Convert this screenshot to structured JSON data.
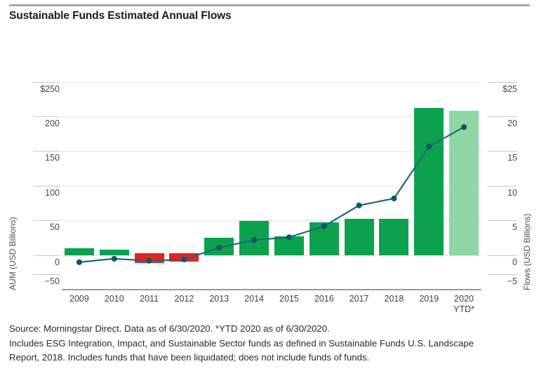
{
  "title": "Sustainable Funds Estimated Annual Flows",
  "footer": {
    "line1": "Source: Morningstar Direct. Data as of 6/30/2020. *YTD 2020 as of 6/30/2020.",
    "line2": "Includes ESG Integration, Impact, and Sustainable Sector funds as defined in Sustainable Funds U.S. Landscape",
    "line3": "Report, 2018. Includes funds that have been liquidated; does not include funds of funds."
  },
  "chart_data": {
    "type": "bar+line",
    "categories": [
      "2009",
      "2010",
      "2011",
      "2012",
      "2013",
      "2014",
      "2015",
      "2016",
      "2017",
      "2018",
      "2019",
      "2020"
    ],
    "category_sublabels": [
      "",
      "",
      "",
      "",
      "",
      "",
      "",
      "",
      "",
      "",
      "",
      "YTD*"
    ],
    "series": [
      {
        "name": "Estimated annual flows",
        "type": "bar",
        "axis": "right",
        "values": [
          1.0,
          0.8,
          -1.1,
          -0.9,
          2.5,
          5.0,
          2.7,
          4.8,
          5.3,
          5.3,
          21.3,
          20.8
        ],
        "bar_colors": [
          "green",
          "green",
          "red",
          "red",
          "green",
          "green",
          "green",
          "green",
          "green",
          "green",
          "green",
          "lightgreen"
        ]
      },
      {
        "name": "AUM",
        "type": "line",
        "axis": "left",
        "values": [
          -10,
          -5,
          -8,
          -6,
          11,
          22,
          26,
          42,
          72,
          82,
          157,
          185
        ]
      }
    ],
    "left_axis": {
      "label": "AUM (USD Billions)",
      "tick_labels": [
        "$250",
        "200",
        "150",
        "100",
        "50",
        "0",
        "−50"
      ],
      "tick_values": [
        250,
        200,
        150,
        100,
        50,
        0,
        -50
      ],
      "range": [
        -50,
        250
      ]
    },
    "right_axis": {
      "label": "Flows (USD Billions)",
      "tick_labels": [
        "$25",
        "20",
        "15",
        "10",
        "5",
        "0",
        "−5"
      ],
      "tick_values": [
        25,
        20,
        15,
        10,
        5,
        0,
        -5
      ],
      "range": [
        -5,
        25
      ]
    },
    "grid": "horizontal",
    "legend": "none",
    "colors": {
      "bar_green": "#0ca24d",
      "bar_red": "#e8231f",
      "bar_lightgreen": "#90d7a6",
      "line": "#1b6b78",
      "dot": "#11566a",
      "gridline": "#e4e4e4",
      "axis_line": "#9a9a9a"
    }
  }
}
